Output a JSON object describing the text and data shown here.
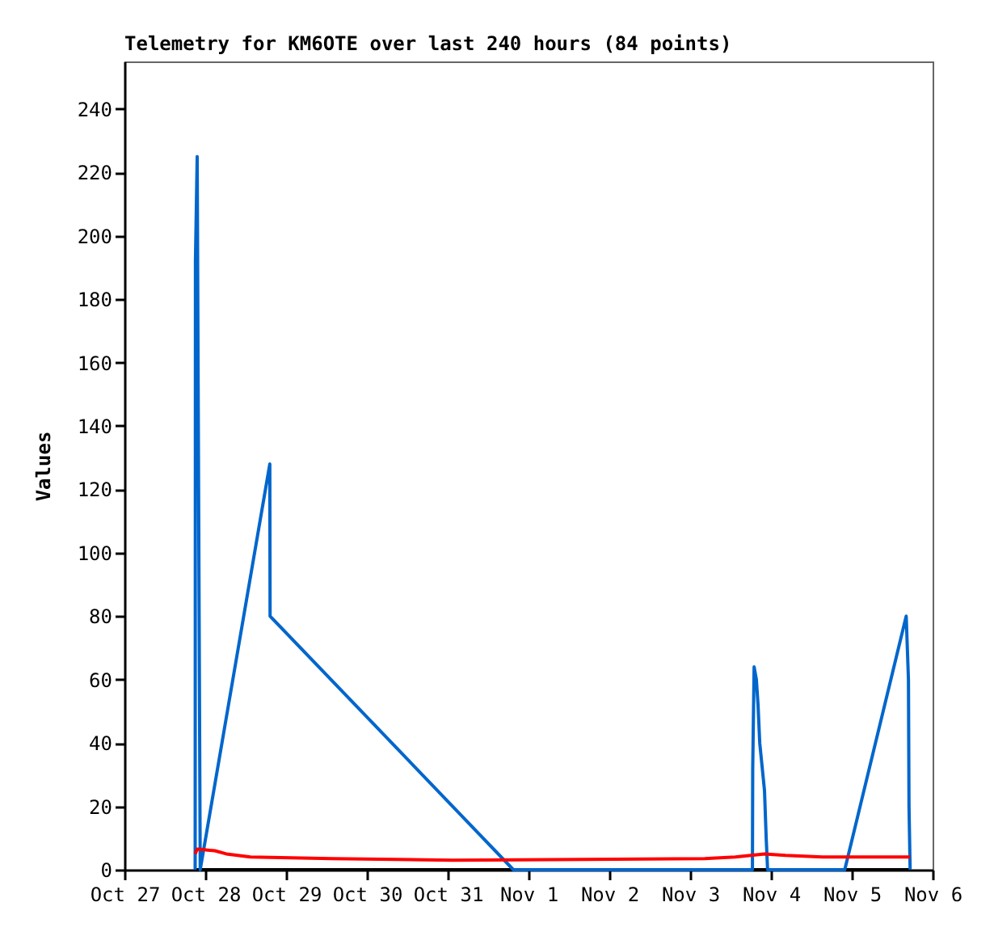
{
  "chart_data": {
    "type": "line",
    "title": "Telemetry for KM6OTE over last 240 hours (84 points)",
    "ylabel": "Values",
    "xlim": [
      "--10-27",
      "--11-06"
    ],
    "xticks": [
      {
        "value": "--10-27",
        "label": "Oct 27"
      },
      {
        "value": "--10-28",
        "label": "Oct 28"
      },
      {
        "value": "--10-29",
        "label": "Oct 29"
      },
      {
        "value": "--10-30",
        "label": "Oct 30"
      },
      {
        "value": "--10-31",
        "label": "Oct 31"
      },
      {
        "value": "--11-01",
        "label": "Nov 1"
      },
      {
        "value": "--11-02",
        "label": "Nov 2"
      },
      {
        "value": "--11-03",
        "label": "Nov 3"
      },
      {
        "value": "--11-04",
        "label": "Nov 4"
      },
      {
        "value": "--11-05",
        "label": "Nov 5"
      },
      {
        "value": "--11-06",
        "label": "Nov 6"
      }
    ],
    "ylim": [
      0,
      255
    ],
    "yticks": [
      0,
      20,
      40,
      60,
      80,
      100,
      120,
      140,
      160,
      180,
      200,
      220,
      240
    ],
    "grid": false,
    "legend": false,
    "marker": "none",
    "series": [
      {
        "color": "#000000",
        "x": [
          "--10-27T21:00",
          "--11-05T17:20"
        ],
        "values": [
          0,
          0
        ]
      },
      {
        "color": "#0066cc",
        "x": [
          "--10-27T21:00",
          "--10-27T21:05",
          "--10-27T21:36",
          "--10-27T22:30",
          "--10-28T19:10",
          "--10-28T19:15",
          "--10-31T19:30",
          "--11-03T18:30",
          "--11-03T18:35",
          "--11-03T19:00",
          "--11-03T19:40",
          "--11-03T20:10",
          "--11-03T20:40",
          "--11-03T22:05",
          "--11-03T22:35",
          "--11-03T23:00",
          "--11-04T21:55",
          "--11-05T16:10",
          "--11-05T16:50",
          "--11-05T17:00",
          "--11-05T17:20"
        ],
        "values": [
          0,
          192,
          225,
          0,
          128,
          80,
          0,
          0,
          32,
          64,
          60,
          52,
          40,
          25,
          10,
          0,
          0,
          80,
          60,
          20,
          0
        ]
      },
      {
        "color": "#ff0000",
        "x": [
          "--10-27T21:00",
          "--10-27T21:36",
          "--10-28T02:50",
          "--10-28T06:15",
          "--10-28T13:25",
          "--10-29T13:25",
          "--10-31T01:25",
          "--11-03T04:20",
          "--11-03T13:25",
          "--11-03T22:05",
          "--11-04T04:20",
          "--11-04T15:50",
          "--11-05T17:20"
        ],
        "values": [
          5,
          6.5,
          6,
          5,
          4,
          3.5,
          3,
          3.5,
          4,
          5,
          4.5,
          4,
          4
        ]
      }
    ]
  }
}
